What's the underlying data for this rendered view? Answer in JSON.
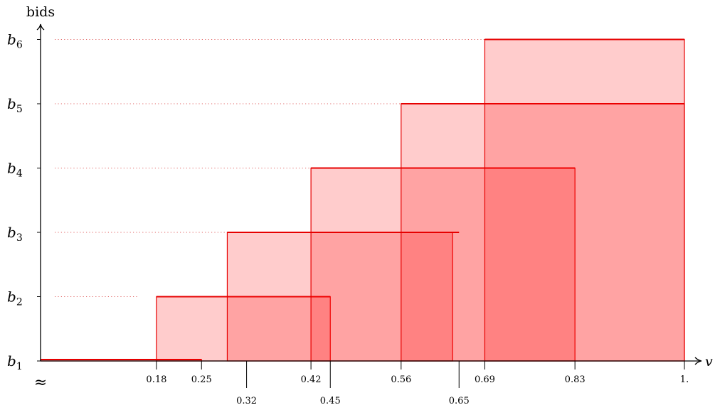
{
  "chart_data": {
    "type": "area",
    "title": "",
    "xlabel": "v",
    "ylabel": "bids",
    "xlim": [
      0,
      1
    ],
    "x_start_marker": "≈",
    "y_levels": [
      {
        "name": "b1",
        "base": "b",
        "sub": "1"
      },
      {
        "name": "b2",
        "base": "b",
        "sub": "2"
      },
      {
        "name": "b3",
        "base": "b",
        "sub": "3"
      },
      {
        "name": "b4",
        "base": "b",
        "sub": "4"
      },
      {
        "name": "b5",
        "base": "b",
        "sub": "5"
      },
      {
        "name": "b6",
        "base": "b",
        "sub": "6"
      }
    ],
    "x_ticks": [
      {
        "value": 0.18,
        "label": "0.18",
        "row": "upper"
      },
      {
        "value": 0.25,
        "label": "0.25",
        "row": "upper"
      },
      {
        "value": 0.32,
        "label": "0.32",
        "row": "lower"
      },
      {
        "value": 0.42,
        "label": "0.42",
        "row": "upper"
      },
      {
        "value": 0.45,
        "label": "0.45",
        "row": "lower"
      },
      {
        "value": 0.56,
        "label": "0.56",
        "row": "upper"
      },
      {
        "value": 0.65,
        "label": "0.65",
        "row": "lower"
      },
      {
        "value": 0.69,
        "label": "0.69",
        "row": "upper"
      },
      {
        "value": 0.83,
        "label": "0.83",
        "row": "upper"
      },
      {
        "value": 1.0,
        "label": "1.",
        "row": "upper"
      }
    ],
    "guide_lines": [
      {
        "level": 2,
        "x_start": 0.0,
        "x_end": 0.15
      },
      {
        "level": 3,
        "x_start": 0.0,
        "x_end": 0.29
      },
      {
        "level": 4,
        "x_start": 0.0,
        "x_end": 0.42
      },
      {
        "level": 5,
        "x_start": 0.0,
        "x_end": 0.56
      },
      {
        "level": 6,
        "x_start": 0.0,
        "x_end": 0.69
      }
    ],
    "regions": [
      {
        "level": 1,
        "x_start": 0.0,
        "x_end": 0.25
      },
      {
        "level": 2,
        "x_start": 0.18,
        "x_end": 0.45
      },
      {
        "level": 3,
        "x_start": 0.29,
        "x_end": 0.64
      },
      {
        "level": 4,
        "x_start": 0.42,
        "x_end": 0.83
      },
      {
        "level": 5,
        "x_start": 0.56,
        "x_end": 1.0
      },
      {
        "level": 6,
        "x_start": 0.69,
        "x_end": 1.0
      }
    ],
    "level_segments": [
      {
        "level": 3,
        "x_start": 0.32,
        "x_end": 0.65
      }
    ],
    "colors": {
      "fill": "#ff0000",
      "fill_opacity": 0.2,
      "stroke": "#e60000",
      "guide": "#e06060",
      "axis": "#000000"
    },
    "grid": false,
    "legend": "none"
  }
}
